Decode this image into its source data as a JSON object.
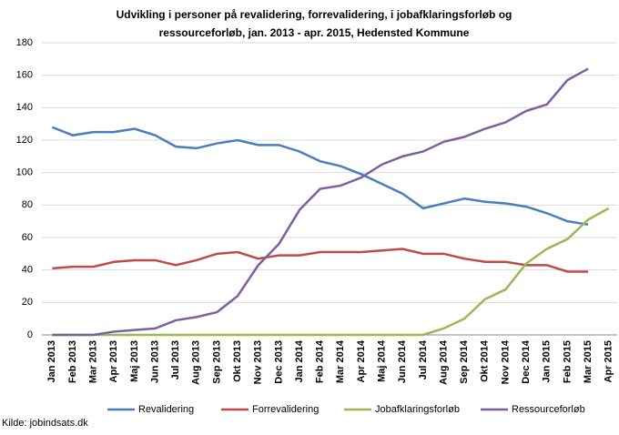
{
  "chart_data": {
    "type": "line",
    "title": [
      "Udvikling i personer på revalidering, forrevalidering, i jobafklaringsforløb og",
      "ressourceforløb, jan. 2013 - apr. 2015, Hedensted Kommune"
    ],
    "categories": [
      "Jan 2013",
      "Feb 2013",
      "Mar 2013",
      "Apr 2013",
      "Maj 2013",
      "Jun 2013",
      "Jul 2013",
      "Aug 2013",
      "Sep 2013",
      "Okt 2013",
      "Nov 2013",
      "Dec 2013",
      "Jan 2014",
      "Feb 2014",
      "Mar 2014",
      "Apr 2014",
      "Maj 2014",
      "Jun 2014",
      "Jul 2014",
      "Aug 2014",
      "Sep 2014",
      "Okt 2014",
      "Nov 2014",
      "Dec 2014",
      "Jan 2015",
      "Feb 2015",
      "Mar 2015",
      "Apr 2015"
    ],
    "series": [
      {
        "name": "Revalidering",
        "color": "#4a7ebb",
        "values": [
          128,
          123,
          125,
          125,
          127,
          123,
          116,
          115,
          118,
          120,
          117,
          117,
          113,
          107,
          104,
          99,
          93,
          87,
          78,
          81,
          84,
          82,
          81,
          79,
          75,
          70,
          68,
          null
        ]
      },
      {
        "name": "Forrevalidering",
        "color": "#be4b48",
        "values": [
          41,
          42,
          42,
          45,
          46,
          46,
          43,
          46,
          50,
          51,
          47,
          49,
          49,
          51,
          51,
          51,
          52,
          53,
          50,
          50,
          47,
          45,
          45,
          43,
          43,
          39,
          39,
          null
        ]
      },
      {
        "name": "Jobafklaringsforløb",
        "color": "#98b954",
        "values": [
          0,
          0,
          0,
          0,
          0,
          0,
          0,
          0,
          0,
          0,
          0,
          0,
          0,
          0,
          0,
          0,
          0,
          0,
          0,
          4,
          10,
          22,
          28,
          44,
          53,
          59,
          71,
          78
        ]
      },
      {
        "name": "Ressourceforløb",
        "color": "#7d5fa0",
        "values": [
          0,
          0,
          0,
          2,
          3,
          4,
          9,
          11,
          14,
          24,
          43,
          56,
          77,
          90,
          92,
          97,
          105,
          110,
          113,
          119,
          122,
          127,
          131,
          138,
          142,
          157,
          164,
          null
        ]
      }
    ],
    "ylim": [
      0,
      180
    ],
    "yticks": [
      0,
      20,
      40,
      60,
      80,
      100,
      120,
      140,
      160,
      180
    ],
    "grid": true,
    "source": "Kilde: jobindsats.dk"
  }
}
